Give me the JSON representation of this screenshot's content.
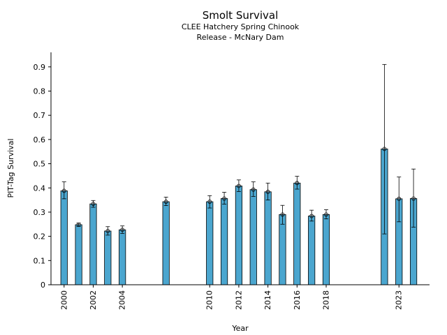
{
  "chart_data": {
    "type": "bar",
    "title": "Smolt Survival",
    "subtitle_lines": [
      "CLEE Hatchery Spring Chinook",
      "Release - McNary Dam"
    ],
    "xlabel": "Year",
    "ylabel": "PIT-Tag Survival",
    "xlim": [
      1999.1,
      2025.1
    ],
    "ylim": [
      0,
      0.96
    ],
    "x_ticks": [
      2000,
      2002,
      2004,
      2010,
      2012,
      2014,
      2016,
      2018,
      2023
    ],
    "y_ticks": [
      0,
      0.1,
      0.2,
      0.3,
      0.4,
      0.5,
      0.6,
      0.7,
      0.8,
      0.9
    ],
    "bar_color": "#4ba6cf",
    "grid": false,
    "series": [
      {
        "points": [
          {
            "x": 2000,
            "y": 0.388,
            "low": 0.355,
            "high": 0.425
          },
          {
            "x": 2001,
            "y": 0.248,
            "low": 0.241,
            "high": 0.255
          },
          {
            "x": 2002,
            "y": 0.334,
            "low": 0.32,
            "high": 0.348
          },
          {
            "x": 2003,
            "y": 0.222,
            "low": 0.205,
            "high": 0.24
          },
          {
            "x": 2004,
            "y": 0.227,
            "low": 0.212,
            "high": 0.243
          },
          {
            "x": 2007,
            "y": 0.343,
            "low": 0.327,
            "high": 0.362
          },
          {
            "x": 2010,
            "y": 0.343,
            "low": 0.317,
            "high": 0.368
          },
          {
            "x": 2011,
            "y": 0.356,
            "low": 0.333,
            "high": 0.382
          },
          {
            "x": 2012,
            "y": 0.408,
            "low": 0.385,
            "high": 0.433
          },
          {
            "x": 2013,
            "y": 0.393,
            "low": 0.365,
            "high": 0.425
          },
          {
            "x": 2014,
            "y": 0.384,
            "low": 0.35,
            "high": 0.42
          },
          {
            "x": 2015,
            "y": 0.29,
            "low": 0.25,
            "high": 0.328
          },
          {
            "x": 2016,
            "y": 0.42,
            "low": 0.395,
            "high": 0.448
          },
          {
            "x": 2017,
            "y": 0.284,
            "low": 0.263,
            "high": 0.308
          },
          {
            "x": 2018,
            "y": 0.29,
            "low": 0.272,
            "high": 0.31
          },
          {
            "x": 2022,
            "y": 0.561,
            "low": 0.21,
            "high": 0.91
          },
          {
            "x": 2023,
            "y": 0.355,
            "low": 0.26,
            "high": 0.445
          },
          {
            "x": 2024,
            "y": 0.356,
            "low": 0.238,
            "high": 0.478
          }
        ]
      }
    ]
  }
}
